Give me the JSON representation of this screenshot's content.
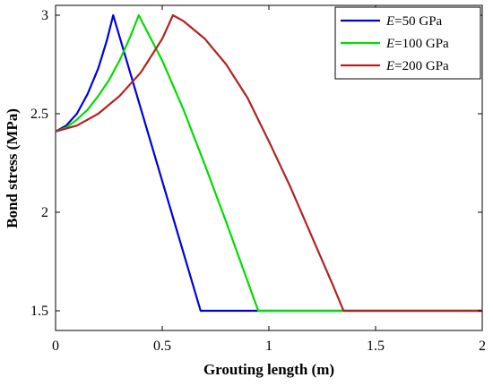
{
  "chart_data": {
    "type": "line",
    "title": "",
    "xlabel": "Grouting length (m)",
    "ylabel": "Bond stress (MPa)",
    "xlim": [
      0,
      2
    ],
    "ylim": [
      1.4,
      3.05
    ],
    "xticks": [
      0,
      0.5,
      1,
      1.5,
      2
    ],
    "xtick_labels": [
      "0",
      "0.5",
      "1",
      "1.5",
      "2"
    ],
    "yticks": [
      1.5,
      2,
      2.5,
      3
    ],
    "ytick_labels": [
      "1.5",
      "2",
      "2.5",
      "3"
    ],
    "grid": false,
    "legend_position": "top-right",
    "series": [
      {
        "name": "E=50 GPa",
        "legend_symbol": "E",
        "legend_rest": "=50 GPa",
        "color": "#0000dd",
        "x": [
          0,
          0.05,
          0.1,
          0.15,
          0.2,
          0.24,
          0.27,
          0.68,
          2
        ],
        "y": [
          2.41,
          2.44,
          2.5,
          2.6,
          2.73,
          2.87,
          3.0,
          1.5,
          1.5
        ]
      },
      {
        "name": "E=100 GPa",
        "legend_symbol": "E",
        "legend_rest": "=100 GPa",
        "color": "#00dd00",
        "x": [
          0,
          0.05,
          0.1,
          0.15,
          0.2,
          0.25,
          0.3,
          0.35,
          0.39,
          0.5,
          0.6,
          0.7,
          0.8,
          0.9,
          0.95,
          2
        ],
        "y": [
          2.41,
          2.43,
          2.47,
          2.52,
          2.59,
          2.67,
          2.77,
          2.89,
          3.0,
          2.77,
          2.52,
          2.24,
          1.95,
          1.65,
          1.5,
          1.5
        ]
      },
      {
        "name": "E=200 GPa",
        "legend_symbol": "E",
        "legend_rest": "=200 GPa",
        "color": "#b22222",
        "x": [
          0,
          0.1,
          0.2,
          0.3,
          0.4,
          0.5,
          0.55,
          0.6,
          0.7,
          0.8,
          0.9,
          1.0,
          1.1,
          1.2,
          1.3,
          1.35,
          2
        ],
        "y": [
          2.41,
          2.44,
          2.5,
          2.59,
          2.71,
          2.88,
          3.0,
          2.97,
          2.88,
          2.75,
          2.58,
          2.36,
          2.13,
          1.88,
          1.63,
          1.5,
          1.5
        ]
      }
    ]
  }
}
